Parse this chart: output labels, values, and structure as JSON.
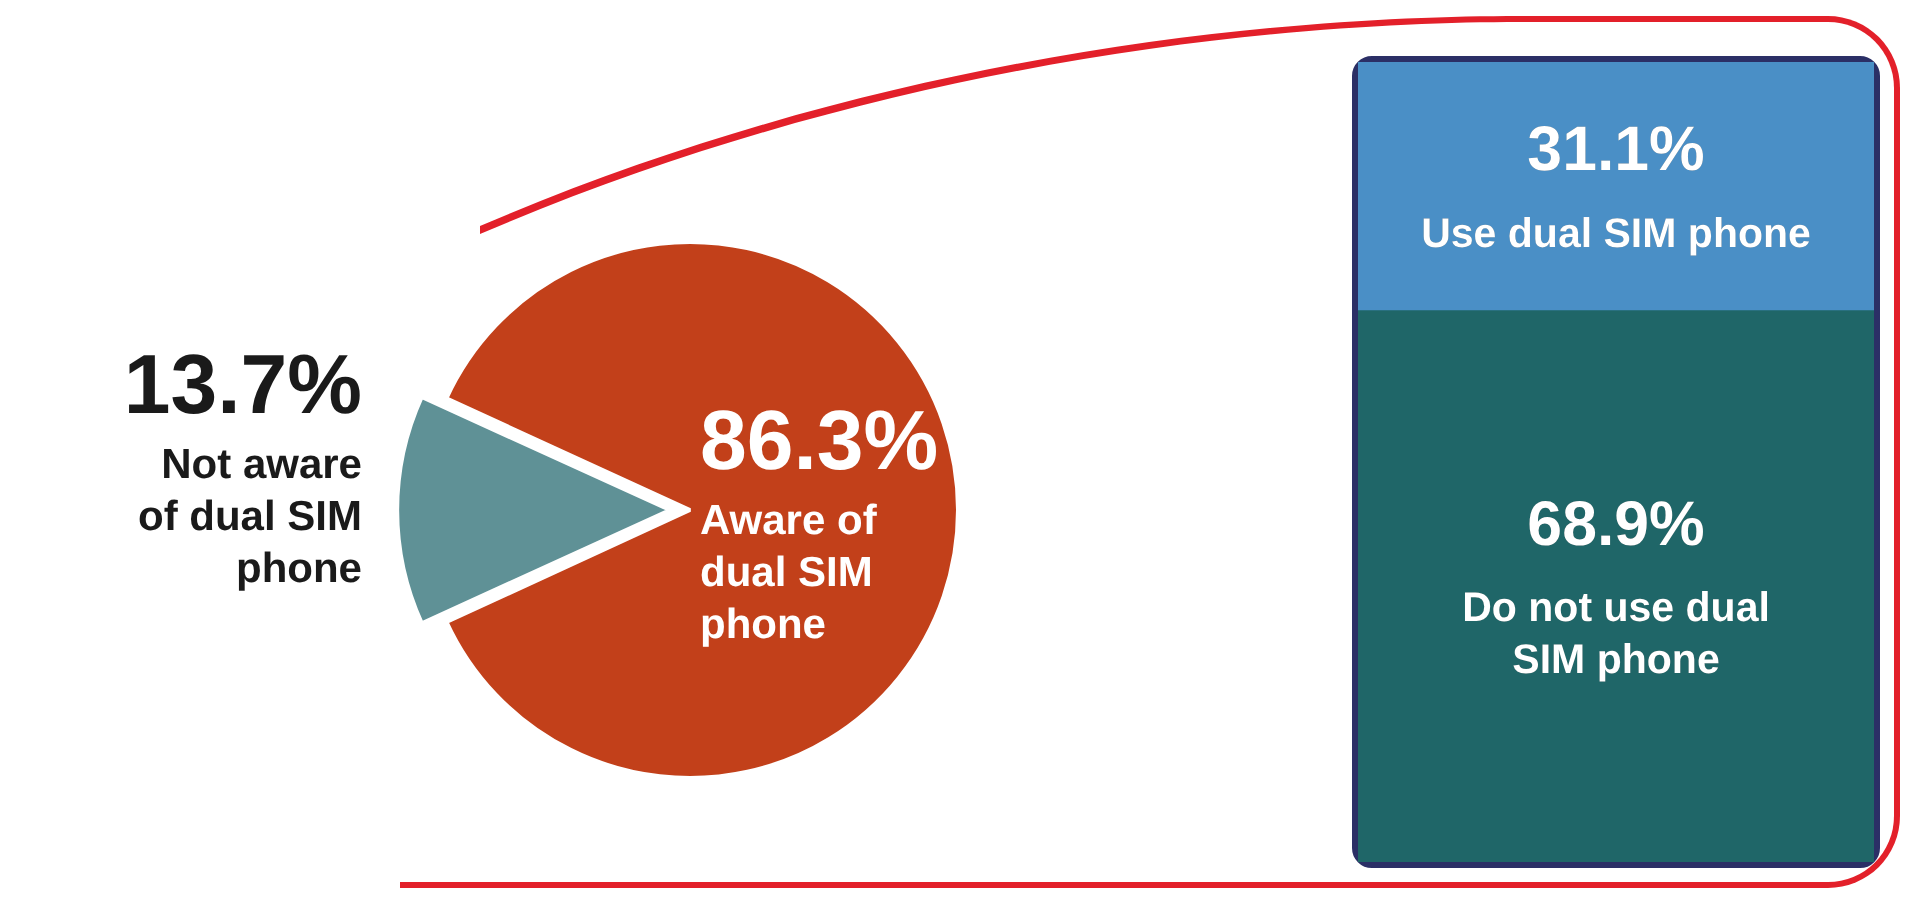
{
  "chart_data": [
    {
      "type": "pie",
      "categories": [
        "Not aware of dual SIM phone",
        "Aware of dual SIM phone"
      ],
      "values": [
        13.7,
        86.3
      ],
      "colors": [
        "#5f9196",
        "#c2401a"
      ],
      "value_labels": [
        "13.7%",
        "86.3%"
      ],
      "legend": false
    },
    {
      "type": "bar",
      "stacked": true,
      "categories": [
        null
      ],
      "series": [
        {
          "name": "Do not use dual SIM phone",
          "color": "#1f6668",
          "values": [
            68.9
          ],
          "value_labels": [
            "68.9%"
          ]
        },
        {
          "name": "Use dual SIM phone",
          "color": "#4a8fc6",
          "values": [
            31.1
          ],
          "value_labels": [
            "31.1%"
          ]
        }
      ],
      "ylim": [
        0,
        100
      ],
      "tick_labels": false,
      "legend": false
    }
  ]
}
